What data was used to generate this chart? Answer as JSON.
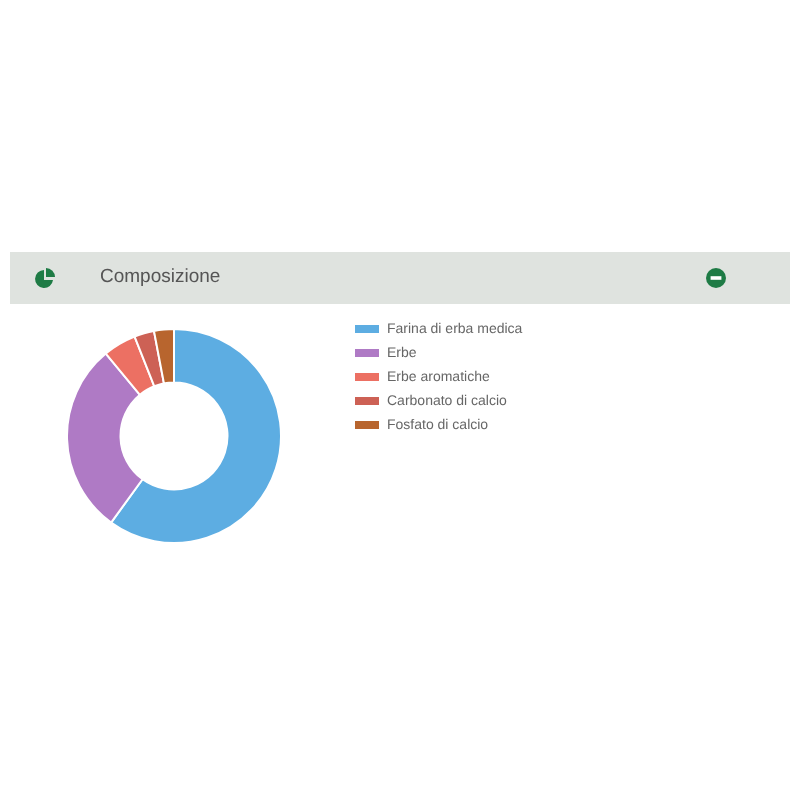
{
  "chart_data": {
    "type": "donut",
    "title": "Composizione",
    "categories": [
      "Farina di erba medica",
      "Erbe",
      "Erbe aromatiche",
      "Carbonato di calcio",
      "Fosfato di calcio"
    ],
    "values": [
      60,
      29,
      5,
      3,
      3
    ],
    "colors": [
      "#5dade2",
      "#af7ac5",
      "#ec7063",
      "#cd6155",
      "#b8652e"
    ],
    "legend": "right"
  }
}
